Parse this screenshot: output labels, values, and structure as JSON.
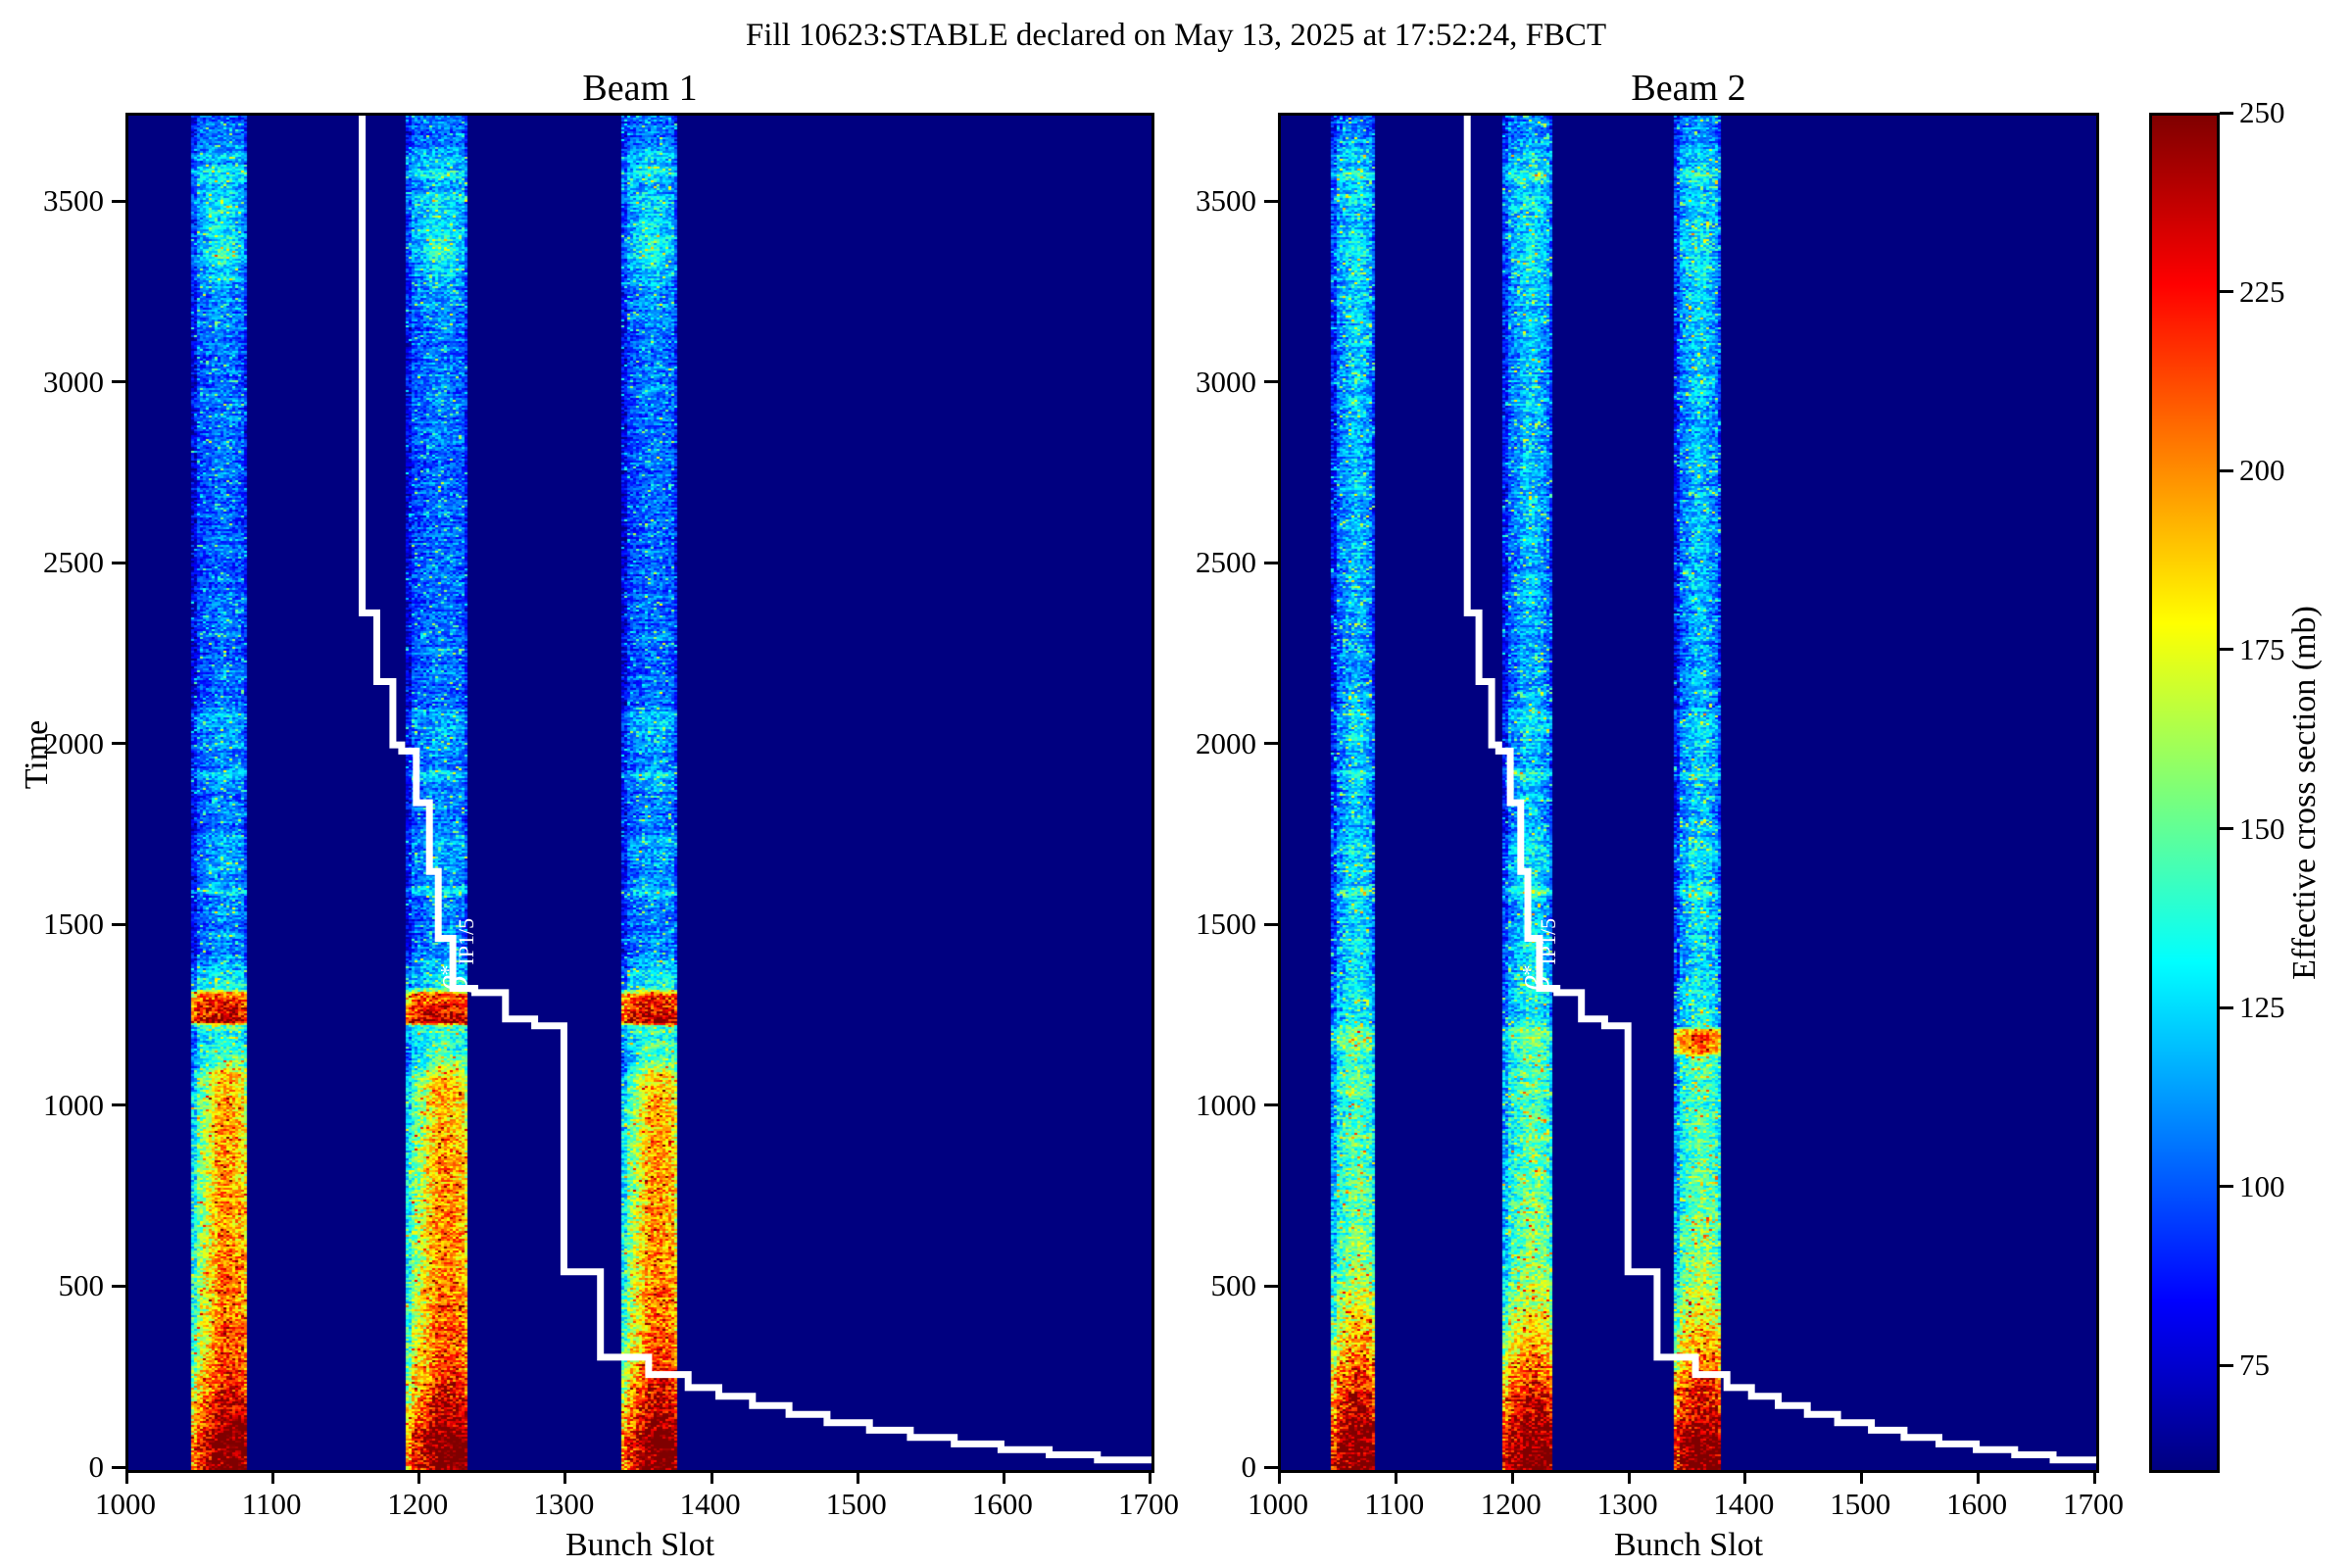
{
  "chart_data": {
    "type": "heatmap",
    "title": "Fill 10623:STABLE declared on May 13, 2025 at 17:52:24, FBCT",
    "panels": [
      {
        "id": "beam1",
        "title": "Beam 1"
      },
      {
        "id": "beam2",
        "title": "Beam 2"
      }
    ],
    "xlabel": "Bunch Slot",
    "ylabel": "Time",
    "xlim": [
      1000,
      1700
    ],
    "ylim": [
      0,
      3745
    ],
    "x_ticks": [
      1000,
      1100,
      1200,
      1300,
      1400,
      1500,
      1600,
      1700
    ],
    "y_ticks": [
      0,
      500,
      1000,
      1500,
      2000,
      2500,
      3000,
      3500
    ],
    "colorbar": {
      "label": "Effective cross section (mb)",
      "ticks": [
        250,
        225,
        200,
        175,
        150,
        125,
        100,
        75
      ],
      "vmin": 60,
      "vmax": 250,
      "colormap": "jet"
    },
    "background_value_color": "#000080",
    "curve_color": "#ffffff",
    "bunch_train_slots": [
      [
        1043,
        1080
      ],
      [
        1190,
        1232
      ],
      [
        1337,
        1375
      ]
    ],
    "beta_star_curve": {
      "symbol": "β",
      "superscript": "*",
      "subscript": "IP1/5",
      "label_anchor": {
        "slot": 1239,
        "time": 1340
      },
      "points_slot_time": [
        [
          1160,
          3745
        ],
        [
          1160,
          2370
        ],
        [
          1170,
          2370
        ],
        [
          1170,
          2180
        ],
        [
          1181,
          2180
        ],
        [
          1181,
          2005
        ],
        [
          1187,
          2005
        ],
        [
          1187,
          1988
        ],
        [
          1197,
          1988
        ],
        [
          1197,
          1845
        ],
        [
          1206,
          1845
        ],
        [
          1206,
          1655
        ],
        [
          1212,
          1655
        ],
        [
          1212,
          1470
        ],
        [
          1222,
          1470
        ],
        [
          1222,
          1332
        ],
        [
          1237,
          1332
        ],
        [
          1237,
          1320
        ],
        [
          1258,
          1320
        ],
        [
          1258,
          1247
        ],
        [
          1278,
          1247
        ],
        [
          1278,
          1228
        ],
        [
          1298,
          1228
        ],
        [
          1298,
          548
        ],
        [
          1323,
          548
        ],
        [
          1323,
          312
        ],
        [
          1356,
          312
        ],
        [
          1356,
          264
        ],
        [
          1383,
          264
        ],
        [
          1383,
          228
        ],
        [
          1404,
          228
        ],
        [
          1404,
          204
        ],
        [
          1427,
          204
        ],
        [
          1427,
          178
        ],
        [
          1452,
          178
        ],
        [
          1452,
          154
        ],
        [
          1478,
          154
        ],
        [
          1478,
          131
        ],
        [
          1507,
          131
        ],
        [
          1507,
          110
        ],
        [
          1535,
          110
        ],
        [
          1535,
          90
        ],
        [
          1565,
          90
        ],
        [
          1565,
          72
        ],
        [
          1597,
          72
        ],
        [
          1597,
          56
        ],
        [
          1630,
          56
        ],
        [
          1630,
          42
        ],
        [
          1663,
          42
        ],
        [
          1663,
          28
        ],
        [
          1700,
          28
        ],
        [
          1700,
          22
        ]
      ]
    },
    "beam_profiles": {
      "beam1": {
        "base": [
          [
            0,
            228
          ],
          [
            70,
            232
          ],
          [
            130,
            216
          ],
          [
            210,
            198
          ],
          [
            300,
            182
          ],
          [
            430,
            170
          ],
          [
            560,
            164
          ],
          [
            900,
            158
          ],
          [
            1080,
            150
          ],
          [
            1130,
            124
          ],
          [
            1200,
            127
          ],
          [
            1228,
            135
          ],
          [
            1238,
            238
          ],
          [
            1268,
            222
          ],
          [
            1315,
            205
          ],
          [
            1332,
            128
          ],
          [
            1430,
            102
          ],
          [
            1580,
            100
          ],
          [
            1600,
            122
          ],
          [
            1620,
            100
          ],
          [
            1740,
            110
          ],
          [
            1760,
            98
          ],
          [
            1900,
            100
          ],
          [
            1925,
            120
          ],
          [
            1945,
            98
          ],
          [
            2090,
            112
          ],
          [
            2115,
            96
          ],
          [
            2600,
            95
          ],
          [
            3100,
            97
          ],
          [
            3270,
            104
          ],
          [
            3360,
            114
          ],
          [
            3460,
            108
          ],
          [
            3520,
            116
          ],
          [
            3545,
            104
          ],
          [
            3585,
            130
          ],
          [
            3610,
            108
          ],
          [
            3635,
            118
          ],
          [
            3660,
            102
          ],
          [
            3745,
            97
          ]
        ],
        "core": [
          [
            0,
            18
          ],
          [
            300,
            26
          ],
          [
            600,
            32
          ],
          [
            1100,
            34
          ],
          [
            1150,
            12
          ],
          [
            1238,
            8
          ],
          [
            1332,
            8
          ],
          [
            3260,
            10
          ],
          [
            3360,
            26
          ],
          [
            3470,
            18
          ],
          [
            3550,
            8
          ],
          [
            3745,
            6
          ]
        ],
        "asym": [
          [
            0,
            50
          ],
          [
            500,
            45
          ],
          [
            1100,
            40
          ],
          [
            1200,
            10
          ],
          [
            3745,
            0
          ]
        ],
        "speckle": 0.06
      },
      "beam2": {
        "base": [
          [
            0,
            244
          ],
          [
            90,
            240
          ],
          [
            160,
            224
          ],
          [
            240,
            202
          ],
          [
            330,
            180
          ],
          [
            440,
            158
          ],
          [
            560,
            142
          ],
          [
            800,
            132
          ],
          [
            1050,
            128
          ],
          [
            1140,
            126
          ],
          [
            1175,
            140
          ],
          [
            1215,
            138
          ],
          [
            1235,
            116
          ],
          [
            1450,
            110
          ],
          [
            1580,
            108
          ],
          [
            1600,
            126
          ],
          [
            1620,
            106
          ],
          [
            1740,
            114
          ],
          [
            1760,
            102
          ],
          [
            1900,
            102
          ],
          [
            1925,
            122
          ],
          [
            1945,
            100
          ],
          [
            2090,
            112
          ],
          [
            2115,
            98
          ],
          [
            2600,
            100
          ],
          [
            3100,
            102
          ],
          [
            3270,
            106
          ],
          [
            3360,
            115
          ],
          [
            3460,
            110
          ],
          [
            3520,
            118
          ],
          [
            3545,
            106
          ],
          [
            3585,
            132
          ],
          [
            3610,
            110
          ],
          [
            3635,
            120
          ],
          [
            3660,
            104
          ],
          [
            3745,
            100
          ]
        ],
        "core": [
          [
            0,
            12
          ],
          [
            400,
            16
          ],
          [
            1205,
            18
          ],
          [
            3300,
            20
          ],
          [
            3460,
            14
          ],
          [
            3745,
            8
          ]
        ],
        "asym": [
          [
            0,
            20
          ],
          [
            500,
            15
          ],
          [
            1100,
            5
          ],
          [
            3745,
            0
          ]
        ],
        "band3_extra": [
          [
            1140,
            0
          ],
          [
            1155,
            55
          ],
          [
            1210,
            55
          ],
          [
            1225,
            0
          ]
        ],
        "speckle": 0.08
      }
    }
  }
}
